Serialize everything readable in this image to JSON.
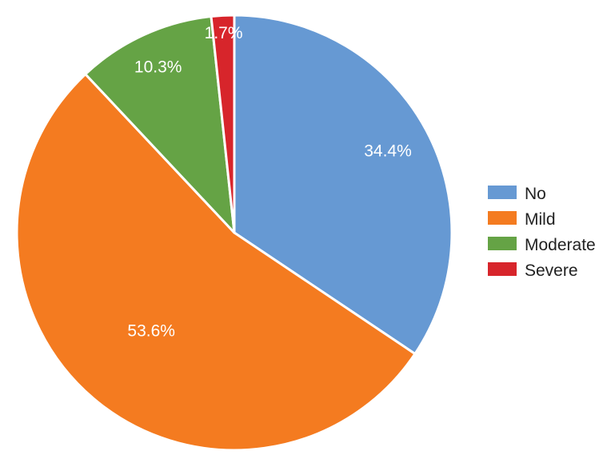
{
  "chart_data": {
    "type": "pie",
    "title": "",
    "categories": [
      "No",
      "Mild",
      "Moderate",
      "Severe"
    ],
    "values": [
      34.4,
      53.6,
      10.3,
      1.7
    ],
    "labels": [
      "34.4%",
      "53.6%",
      "10.3%",
      "1.7%"
    ],
    "colors": [
      "#6699d3",
      "#f47b20",
      "#65a345",
      "#d7252b"
    ],
    "start_angle_deg": 0,
    "direction": "clockwise",
    "legend_position": "right"
  }
}
